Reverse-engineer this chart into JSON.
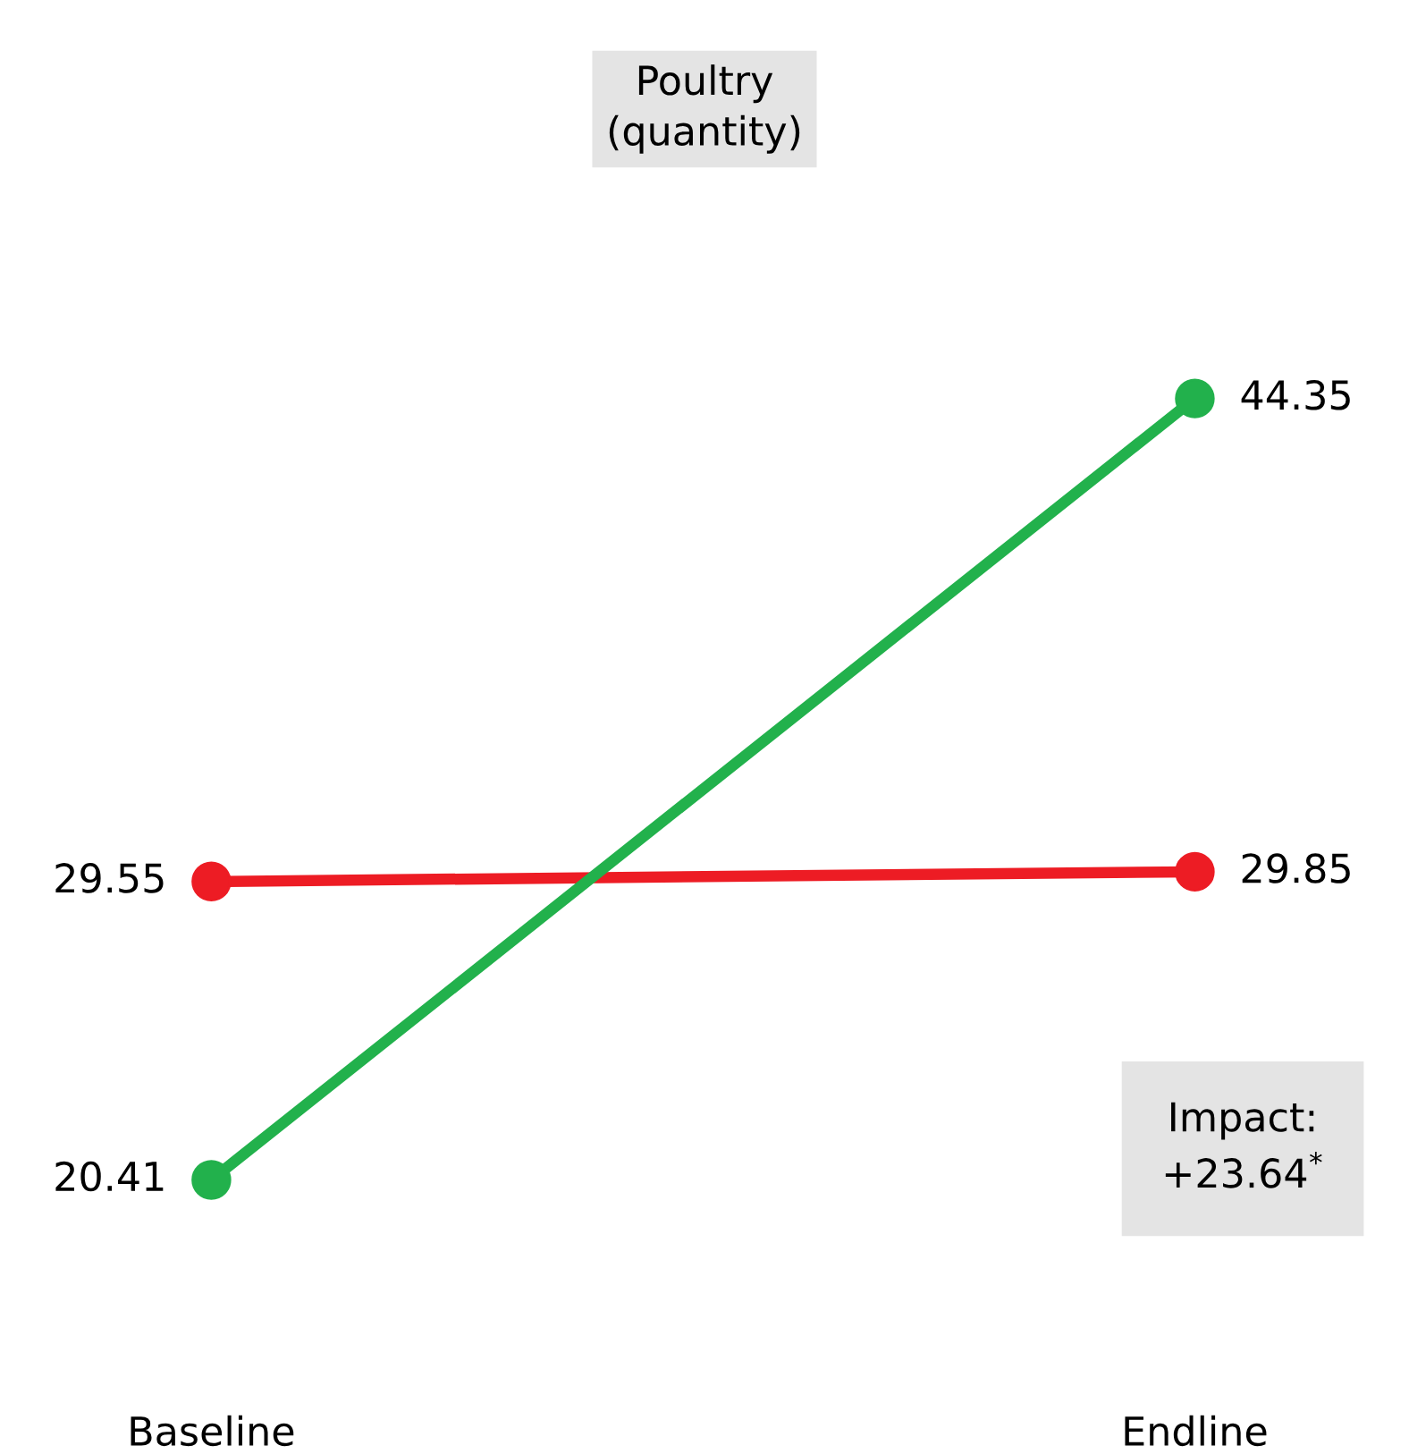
{
  "chart_data": {
    "type": "line",
    "title": "Poultry\n(quantity)",
    "categories": [
      "Baseline",
      "Endline"
    ],
    "series": [
      {
        "color": "#ed1c24",
        "values": [
          29.55,
          29.85
        ]
      },
      {
        "color": "#22b14c",
        "values": [
          20.41,
          44.35
        ]
      }
    ],
    "data_labels": true,
    "marker": "circle",
    "line_style": "solid",
    "grid": false,
    "annotations": [
      "Impact:\n+23.64$^{*}$"
    ]
  }
}
